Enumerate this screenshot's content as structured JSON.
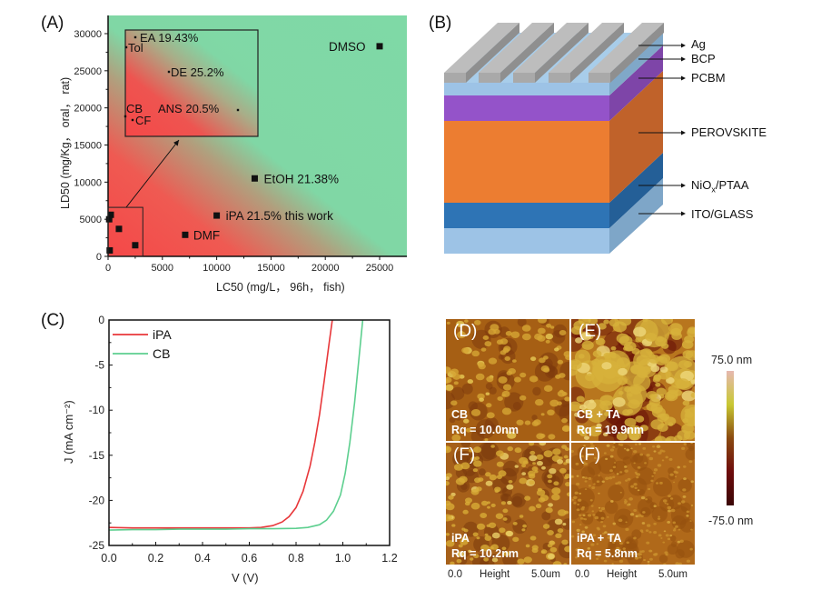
{
  "figure_panels": [
    "(A)",
    "(B)",
    "(C)",
    "(D)",
    "(E)",
    "(F)",
    "(F)"
  ],
  "chart_data": [
    {
      "panel": "(A)",
      "type": "scatter",
      "title": "",
      "xlabel": "LC50 (mg/L， 96h， fish)",
      "ylabel": "LD50 (mg/Kg， oral， rat)",
      "xlim": [
        0,
        27500
      ],
      "ylim": [
        0,
        32500
      ],
      "xticks": [
        0,
        5000,
        10000,
        15000,
        20000,
        25000
      ],
      "yticks": [
        0,
        5000,
        10000,
        15000,
        20000,
        25000,
        30000
      ],
      "background": "gradient red (low toxicity-safe threshold, lower-left) to green (upper-right)",
      "colors": {
        "red": "#f54a4a",
        "green": "#7fd9a6"
      },
      "points": [
        {
          "label": "DMSO",
          "x": 25000,
          "y": 28300
        },
        {
          "label": "EtOH 21.38%",
          "x": 13500,
          "y": 10500
        },
        {
          "label": "iPA 21.5% this work",
          "x": 10000,
          "y": 5500
        },
        {
          "label": "DMF",
          "x": 7100,
          "y": 2900
        },
        {
          "label": "",
          "x": 250,
          "y": 5600
        },
        {
          "label": "",
          "x": 100,
          "y": 5000
        },
        {
          "label": "",
          "x": 1000,
          "y": 3700
        },
        {
          "label": "",
          "x": 2500,
          "y": 1500
        },
        {
          "label": "",
          "x": 150,
          "y": 800
        }
      ],
      "inset": {
        "region_x": [
          0,
          3200
        ],
        "region_y": [
          0,
          6600
        ],
        "points": [
          {
            "label": "EA 19.43%"
          },
          {
            "label": "Tol"
          },
          {
            "label": "DE 25.2%"
          },
          {
            "label": "CB"
          },
          {
            "label": "ANS 20.5%"
          },
          {
            "label": "CF"
          }
        ]
      }
    },
    {
      "panel": "(C)",
      "type": "line",
      "title": "",
      "xlabel": "V (V)",
      "ylabel": "J (mA cm⁻²)",
      "xlim": [
        0.0,
        1.2
      ],
      "ylim": [
        -25,
        0
      ],
      "xticks": [
        "0.0",
        "0.2",
        "0.4",
        "0.6",
        "0.8",
        "1.0",
        "1.2"
      ],
      "yticks": [
        "0",
        "-5",
        "-10",
        "-15",
        "-20",
        "-25"
      ],
      "legend": "top-left",
      "series": [
        {
          "name": "iPA",
          "color": "#e8373a",
          "x": [
            0.0,
            0.1,
            0.2,
            0.3,
            0.4,
            0.5,
            0.6,
            0.65,
            0.7,
            0.74,
            0.77,
            0.8,
            0.83,
            0.86,
            0.88,
            0.9,
            0.92,
            0.94,
            0.955
          ],
          "y": [
            -23.0,
            -23.05,
            -23.05,
            -23.05,
            -23.05,
            -23.05,
            -23.05,
            -23.0,
            -22.8,
            -22.4,
            -21.8,
            -20.8,
            -19.0,
            -16.2,
            -13.6,
            -10.5,
            -6.8,
            -2.8,
            0.0
          ]
        },
        {
          "name": "CB",
          "color": "#5dcf8f",
          "x": [
            0.0,
            0.1,
            0.2,
            0.3,
            0.4,
            0.5,
            0.6,
            0.7,
            0.8,
            0.85,
            0.9,
            0.93,
            0.96,
            0.99,
            1.01,
            1.03,
            1.05,
            1.07,
            1.085
          ],
          "y": [
            -23.3,
            -23.25,
            -23.25,
            -23.2,
            -23.2,
            -23.2,
            -23.15,
            -23.15,
            -23.1,
            -23.0,
            -22.7,
            -22.2,
            -21.2,
            -19.4,
            -17.0,
            -13.6,
            -9.2,
            -4.0,
            0.0
          ]
        }
      ]
    }
  ],
  "device_stack": {
    "panel": "(B)",
    "layers": [
      {
        "name": "Ag",
        "color": "#a9a9a9"
      },
      {
        "name": "BCP",
        "color": "#9dc3e6"
      },
      {
        "name": "PCBM",
        "color": "#9453c9"
      },
      {
        "name": "PEROVSKITE",
        "color": "#ec7d31"
      },
      {
        "name": "NiOx/PTAA",
        "color": "#2e74b5"
      },
      {
        "name": "ITO/GLASS",
        "color": "#9dc3e6"
      }
    ],
    "labels": {
      "ag": "Ag",
      "bcp": "BCP",
      "pcbm": "PCBM",
      "perovskite": "PEROVSKITE",
      "niox_main": "NiO",
      "niox_sub": "x",
      "niox_rest": "/PTAA",
      "ito": "ITO/GLASS"
    }
  },
  "afm": {
    "tiles": [
      {
        "letter": "(D)",
        "sample": "CB",
        "rq": "Rq = 10.0nm"
      },
      {
        "letter": "(E)",
        "sample": "CB + TA",
        "rq": "Rq = 19.9nm"
      },
      {
        "letter": "(F)",
        "sample": "iPA",
        "rq": "Rq = 10.2nm"
      },
      {
        "letter": "(F)",
        "sample": "iPA + TA",
        "rq": "Rq = 5.8nm"
      }
    ],
    "scale_left": {
      "start": "0.0",
      "mid": "Height",
      "end": "5.0um"
    },
    "scale_right": {
      "start": "0.0",
      "mid": "Height",
      "end": "5.0um"
    },
    "colorbar": {
      "max": "75.0 nm",
      "min": "-75.0 nm",
      "colors": [
        "#e6b8b0",
        "#c8c832",
        "#8a4a10",
        "#6e0c0c",
        "#3a0606"
      ]
    }
  }
}
